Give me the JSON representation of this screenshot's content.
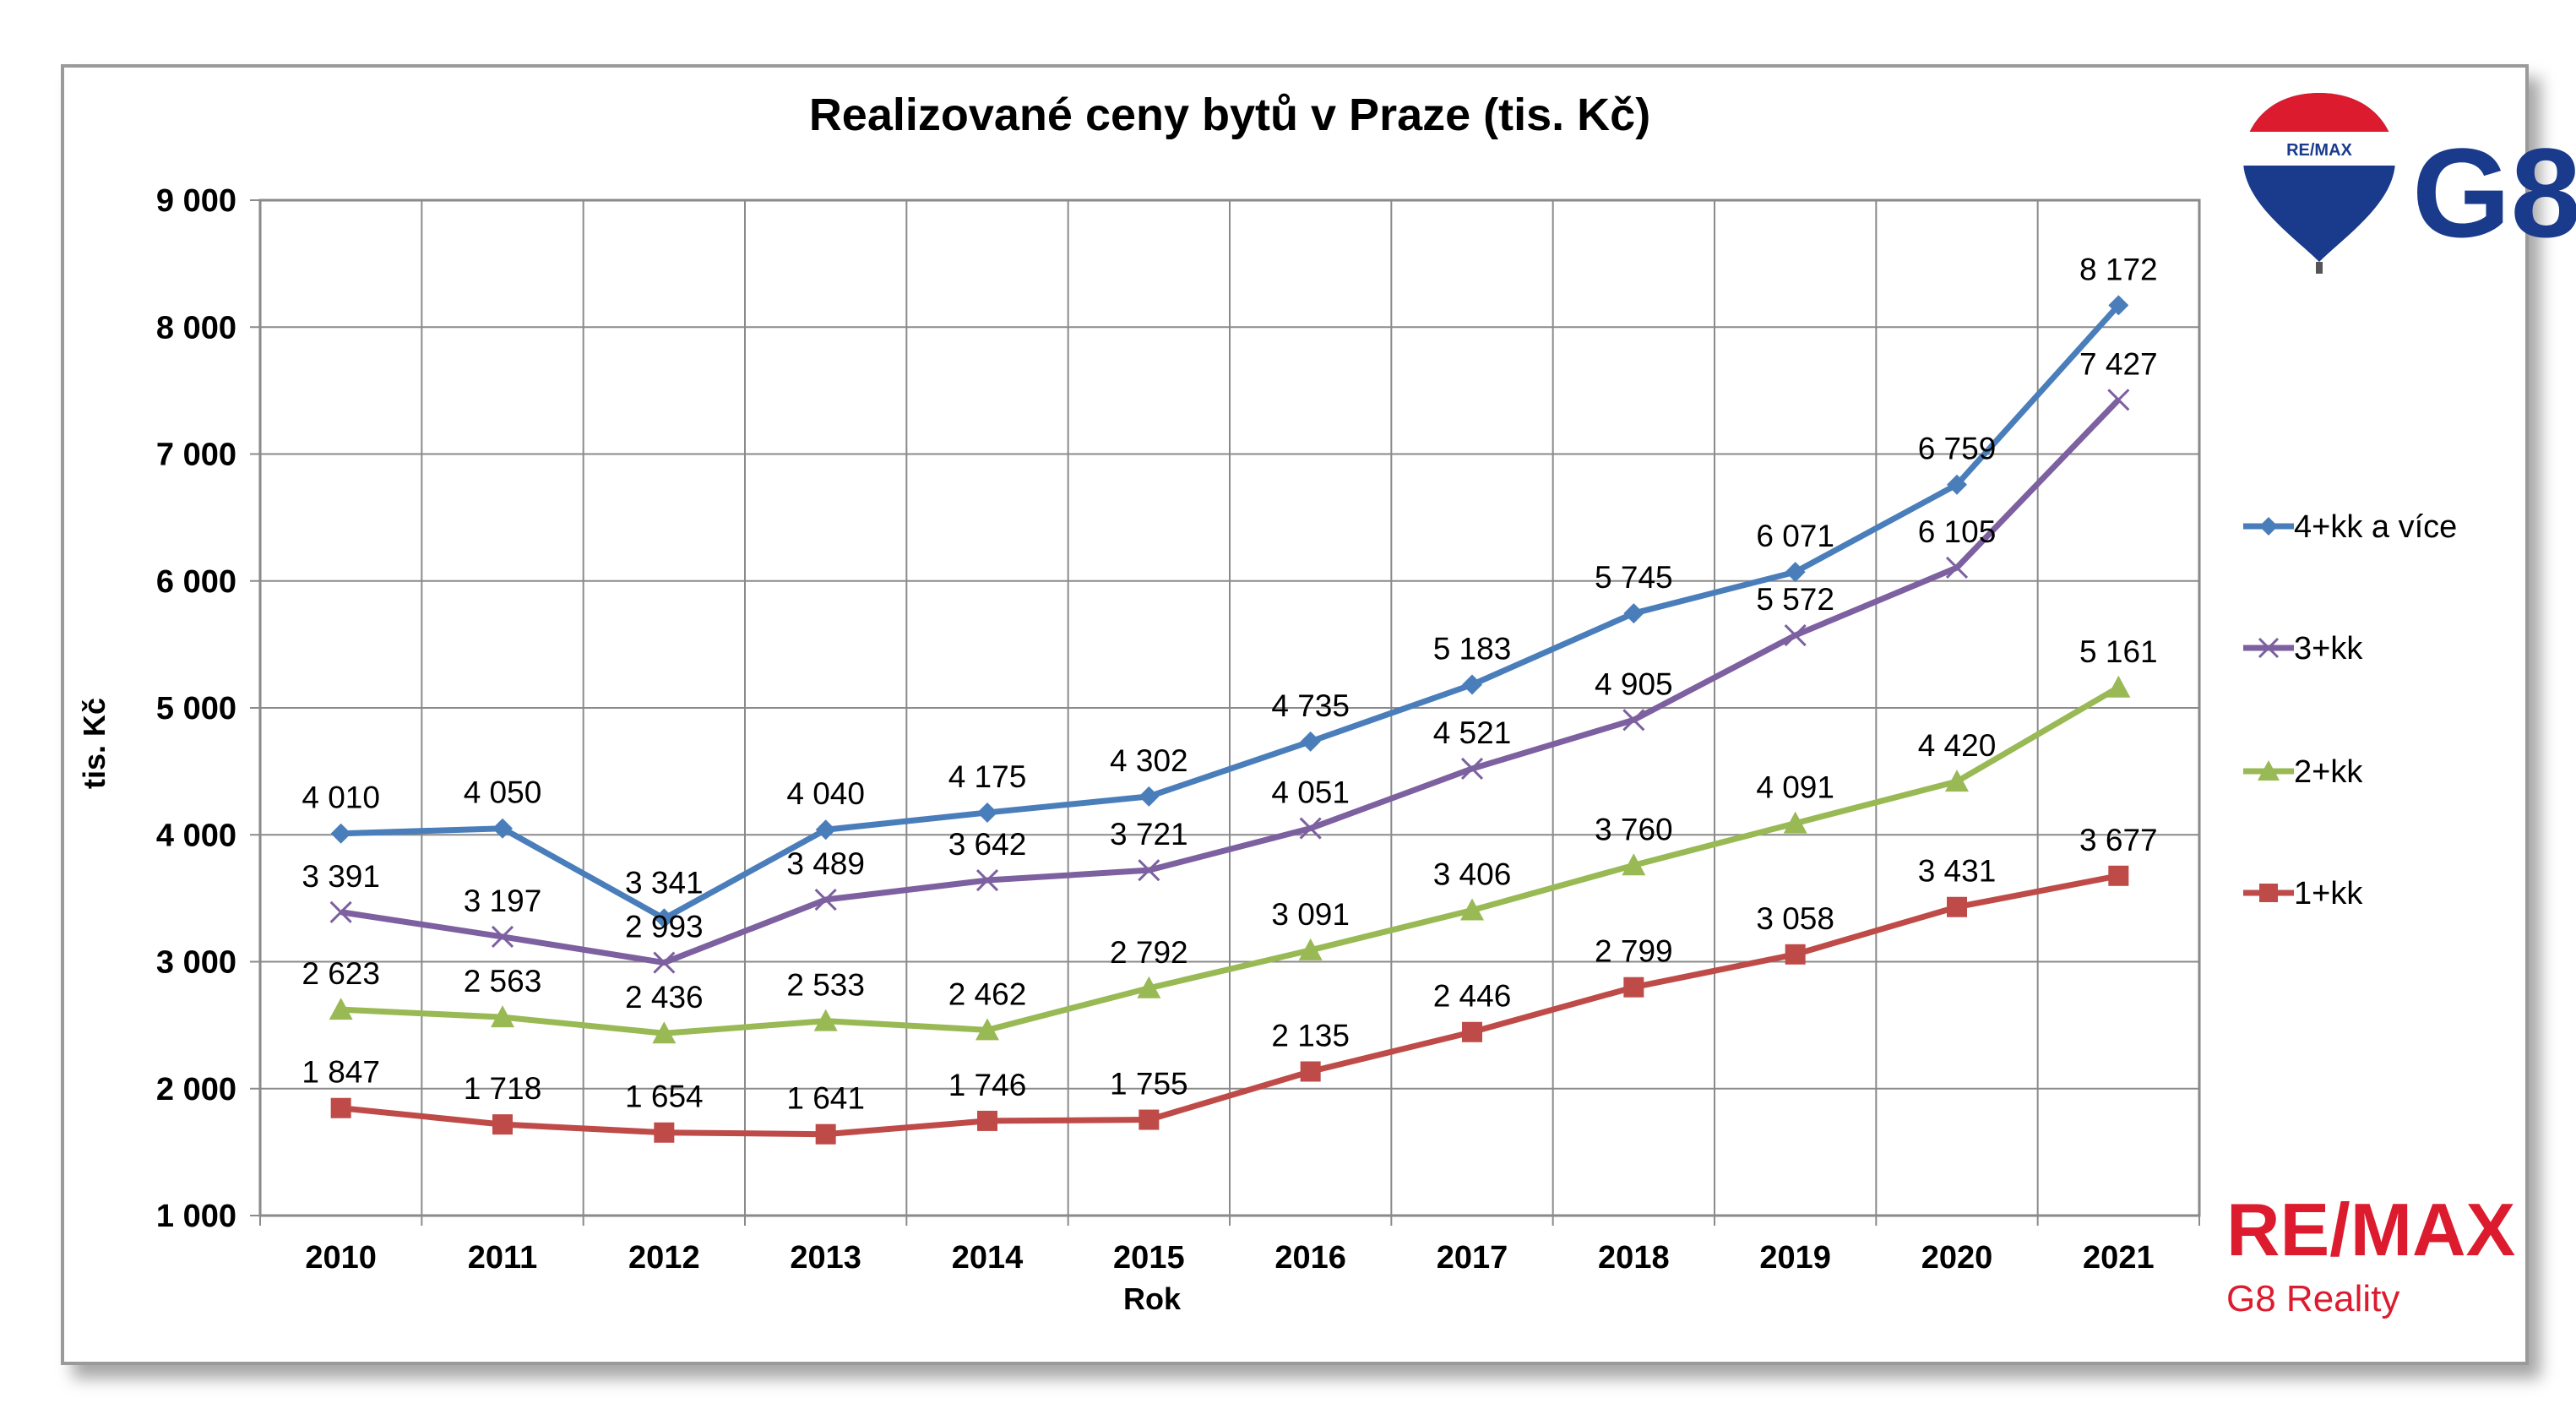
{
  "chart_data": {
    "type": "line",
    "title": "Realizované ceny bytů v Praze (tis. Kč)",
    "xlabel": "Rok",
    "ylabel": "tis. Kč",
    "ylim": [
      1000,
      9000
    ],
    "yticks": [
      1000,
      2000,
      3000,
      4000,
      5000,
      6000,
      7000,
      8000,
      9000
    ],
    "ytick_labels": [
      "1 000",
      "2 000",
      "3 000",
      "4 000",
      "5 000",
      "6 000",
      "7 000",
      "8 000",
      "9 000"
    ],
    "grid": true,
    "legend_position": "right",
    "categories": [
      "2010",
      "2011",
      "2012",
      "2013",
      "2014",
      "2015",
      "2016",
      "2017",
      "2018",
      "2019",
      "2020",
      "2021"
    ],
    "series": [
      {
        "name": "4+kk a více",
        "color": "#4a7ebb",
        "marker": "diamond",
        "values": [
          4010,
          4050,
          3341,
          4040,
          4175,
          4302,
          4735,
          5183,
          5745,
          6071,
          6759,
          8172
        ],
        "labels": [
          "4 010",
          "4 050",
          "3 341",
          "4 040",
          "4 175",
          "4 302",
          "4 735",
          "5 183",
          "5 745",
          "6 071",
          "6 759",
          "8 172"
        ]
      },
      {
        "name": "3+kk",
        "color": "#7d60a0",
        "marker": "x",
        "values": [
          3391,
          3197,
          2993,
          3489,
          3642,
          3721,
          4051,
          4521,
          4905,
          5572,
          6105,
          7427
        ],
        "labels": [
          "3 391",
          "3 197",
          "2 993",
          "3 489",
          "3 642",
          "3 721",
          "4 051",
          "4 521",
          "4 905",
          "5 572",
          "6 105",
          "7 427"
        ]
      },
      {
        "name": "2+kk",
        "color": "#98b954",
        "marker": "triangle",
        "values": [
          2623,
          2563,
          2436,
          2533,
          2462,
          2792,
          3091,
          3406,
          3760,
          4091,
          4420,
          5161
        ],
        "labels": [
          "2 623",
          "2 563",
          "2 436",
          "2 533",
          "2 462",
          "2 792",
          "3 091",
          "3 406",
          "3 760",
          "4 091",
          "4 420",
          "5 161"
        ]
      },
      {
        "name": "1+kk",
        "color": "#be4b48",
        "marker": "square",
        "values": [
          1847,
          1718,
          1654,
          1641,
          1746,
          1755,
          2135,
          2446,
          2799,
          3058,
          3431,
          3677
        ],
        "labels": [
          "1 847",
          "1 718",
          "1 654",
          "1 641",
          "1 746",
          "1 755",
          "2 135",
          "2 446",
          "2 799",
          "3 058",
          "3 431",
          "3 677"
        ]
      }
    ]
  },
  "branding": {
    "top_logo_balloon_text": "RE/MAX",
    "top_logo_text": "G8",
    "bottom_logo_text": "RE/MAX",
    "bottom_logo_subtext": "G8 Reality",
    "remax_red": "#dc1c2e",
    "remax_blue": "#1a3a8c"
  }
}
